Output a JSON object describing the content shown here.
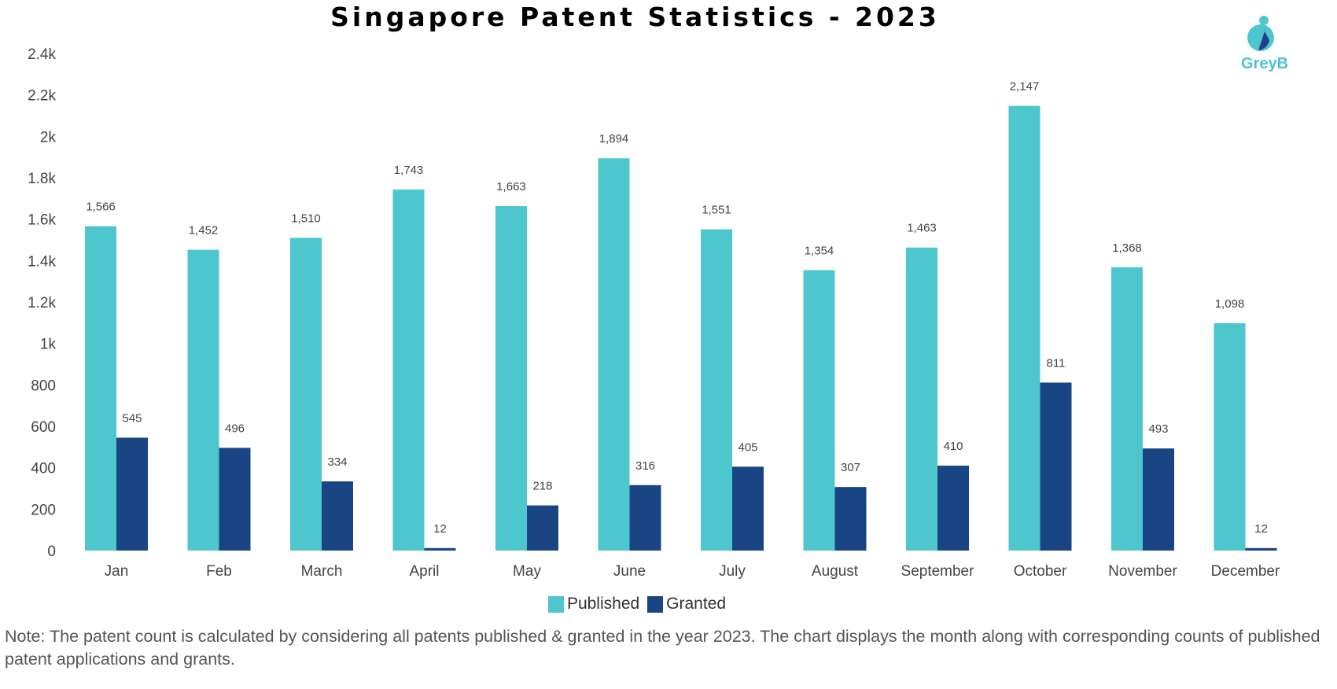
{
  "chart_data": {
    "type": "bar",
    "title": "Singapore Patent Statistics - 2023",
    "categories": [
      "Jan",
      "Feb",
      "March",
      "April",
      "May",
      "June",
      "July",
      "August",
      "September",
      "October",
      "November",
      "December"
    ],
    "series": [
      {
        "name": "Published",
        "color": "#4ec6cd",
        "values": [
          1566,
          1452,
          1510,
          1743,
          1663,
          1894,
          1551,
          1354,
          1463,
          2147,
          1368,
          1098
        ],
        "labels": [
          "1,566",
          "1,452",
          "1,510",
          "1,743",
          "1,663",
          "1,894",
          "1,551",
          "1,354",
          "1,463",
          "2,147",
          "1,368",
          "1,098"
        ]
      },
      {
        "name": "Granted",
        "color": "#1a4585",
        "values": [
          545,
          496,
          334,
          12,
          218,
          316,
          405,
          307,
          410,
          811,
          493,
          12
        ],
        "labels": [
          "545",
          "496",
          "334",
          "12",
          "218",
          "316",
          "405",
          "307",
          "410",
          "811",
          "493",
          "12"
        ]
      }
    ],
    "ylim": [
      0,
      2400
    ],
    "yticks": [
      0,
      200,
      400,
      600,
      800,
      1000,
      1200,
      1400,
      1600,
      1800,
      2000,
      2200,
      2400
    ],
    "ytick_labels": [
      "0",
      "200",
      "400",
      "600",
      "800",
      "1k",
      "1.2k",
      "1.4k",
      "1.6k",
      "1.8k",
      "2k",
      "2.2k",
      "2.4k"
    ],
    "grid": false,
    "legend": "bottom"
  },
  "logo": {
    "text": "GreyB"
  },
  "note": "Note: The patent count is calculated by considering all patents published & granted in the year 2023. The chart displays the month along with corresponding counts of published patent applications and grants."
}
